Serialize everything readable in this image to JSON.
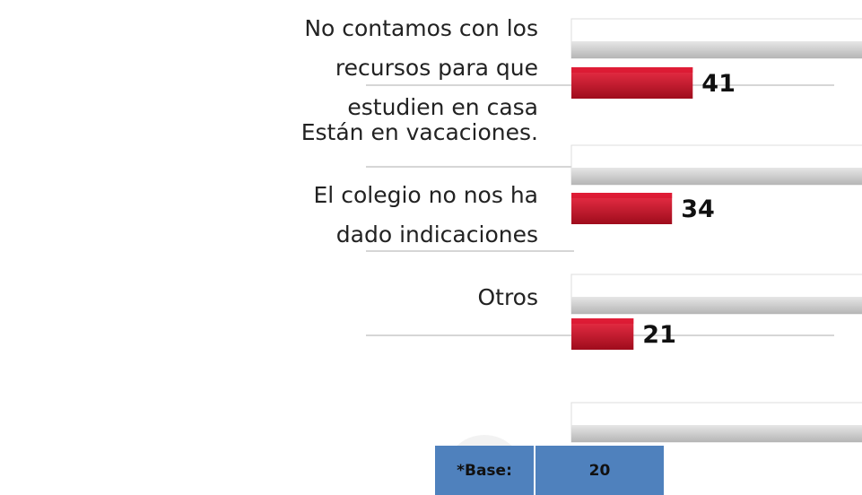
{
  "chart_data": {
    "type": "bar",
    "categories": [
      "No contamos con los recursos para que estudien en casa",
      "Están en vacaciones.",
      "El colegio no nos ha dado indicaciones",
      "Otros"
    ],
    "series": [
      {
        "color": "#d7102c",
        "values": [
          41,
          null,
          34,
          21
        ]
      }
    ]
  },
  "base": {
    "label": "*Base:",
    "value": 20
  }
}
